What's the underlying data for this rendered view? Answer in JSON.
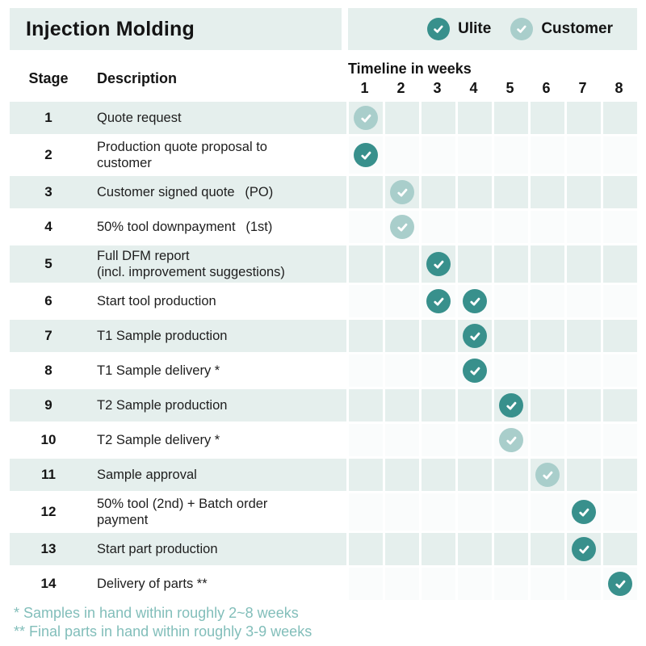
{
  "chart_data": {
    "type": "table",
    "title": "Injection Molding",
    "columns": [
      "Stage",
      "Description"
    ],
    "timeline_header": "Timeline in weeks",
    "week_ticks": [
      "1",
      "2",
      "3",
      "4",
      "5",
      "6",
      "7",
      "8"
    ],
    "week_range": [
      1,
      8
    ],
    "legend_position": "top-right",
    "series": [
      {
        "name": "Ulite",
        "color": "#38908C"
      },
      {
        "name": "Customer",
        "color": "#A9CECB"
      }
    ],
    "rows": [
      {
        "stage": "1",
        "description": "Quote request",
        "checks": [
          {
            "week": 1,
            "actor": "customer"
          }
        ]
      },
      {
        "stage": "2",
        "description": "Production quote proposal to\ncustomer",
        "checks": [
          {
            "week": 1,
            "actor": "ulite"
          }
        ]
      },
      {
        "stage": "3",
        "description": "Customer signed quote  (PO)",
        "checks": [
          {
            "week": 2,
            "actor": "customer"
          }
        ]
      },
      {
        "stage": "4",
        "description": "50% tool downpayment  (1st)",
        "checks": [
          {
            "week": 2,
            "actor": "customer"
          }
        ]
      },
      {
        "stage": "5",
        "description": "Full DFM report\n(incl. improvement suggestions)",
        "checks": [
          {
            "week": 3,
            "actor": "ulite"
          }
        ]
      },
      {
        "stage": "6",
        "description": "Start tool production",
        "checks": [
          {
            "week": 3,
            "actor": "ulite"
          },
          {
            "week": 4,
            "actor": "ulite"
          }
        ]
      },
      {
        "stage": "7",
        "description": "T1 Sample production",
        "checks": [
          {
            "week": 4,
            "actor": "ulite"
          }
        ]
      },
      {
        "stage": "8",
        "description": "T1 Sample delivery *",
        "checks": [
          {
            "week": 4,
            "actor": "ulite"
          }
        ]
      },
      {
        "stage": "9",
        "description": "T2 Sample production",
        "checks": [
          {
            "week": 5,
            "actor": "ulite"
          }
        ]
      },
      {
        "stage": "10",
        "description": "T2 Sample delivery *",
        "checks": [
          {
            "week": 5,
            "actor": "customer"
          }
        ]
      },
      {
        "stage": "11",
        "description": "Sample approval",
        "checks": [
          {
            "week": 6,
            "actor": "customer"
          }
        ]
      },
      {
        "stage": "12",
        "description": "50% tool (2nd) + Batch order\npayment",
        "checks": [
          {
            "week": 7,
            "actor": "ulite"
          }
        ]
      },
      {
        "stage": "13",
        "description": "Start part production",
        "checks": [
          {
            "week": 7,
            "actor": "ulite"
          }
        ]
      },
      {
        "stage": "14",
        "description": "Delivery of parts **",
        "checks": [
          {
            "week": 8,
            "actor": "ulite"
          }
        ]
      }
    ]
  },
  "table": {
    "stage_header": "Stage",
    "description_header": "Description"
  },
  "footnotes": [
    "* Samples in hand within roughly 2~8 weeks",
    "** Final parts in hand within roughly 3-9 weeks"
  ],
  "colors": {
    "ulite": "#38908C",
    "customer": "#A9CECB",
    "band_bg": "#E5EFED",
    "footnote_text": "#82BEBA",
    "text": "#141414"
  }
}
